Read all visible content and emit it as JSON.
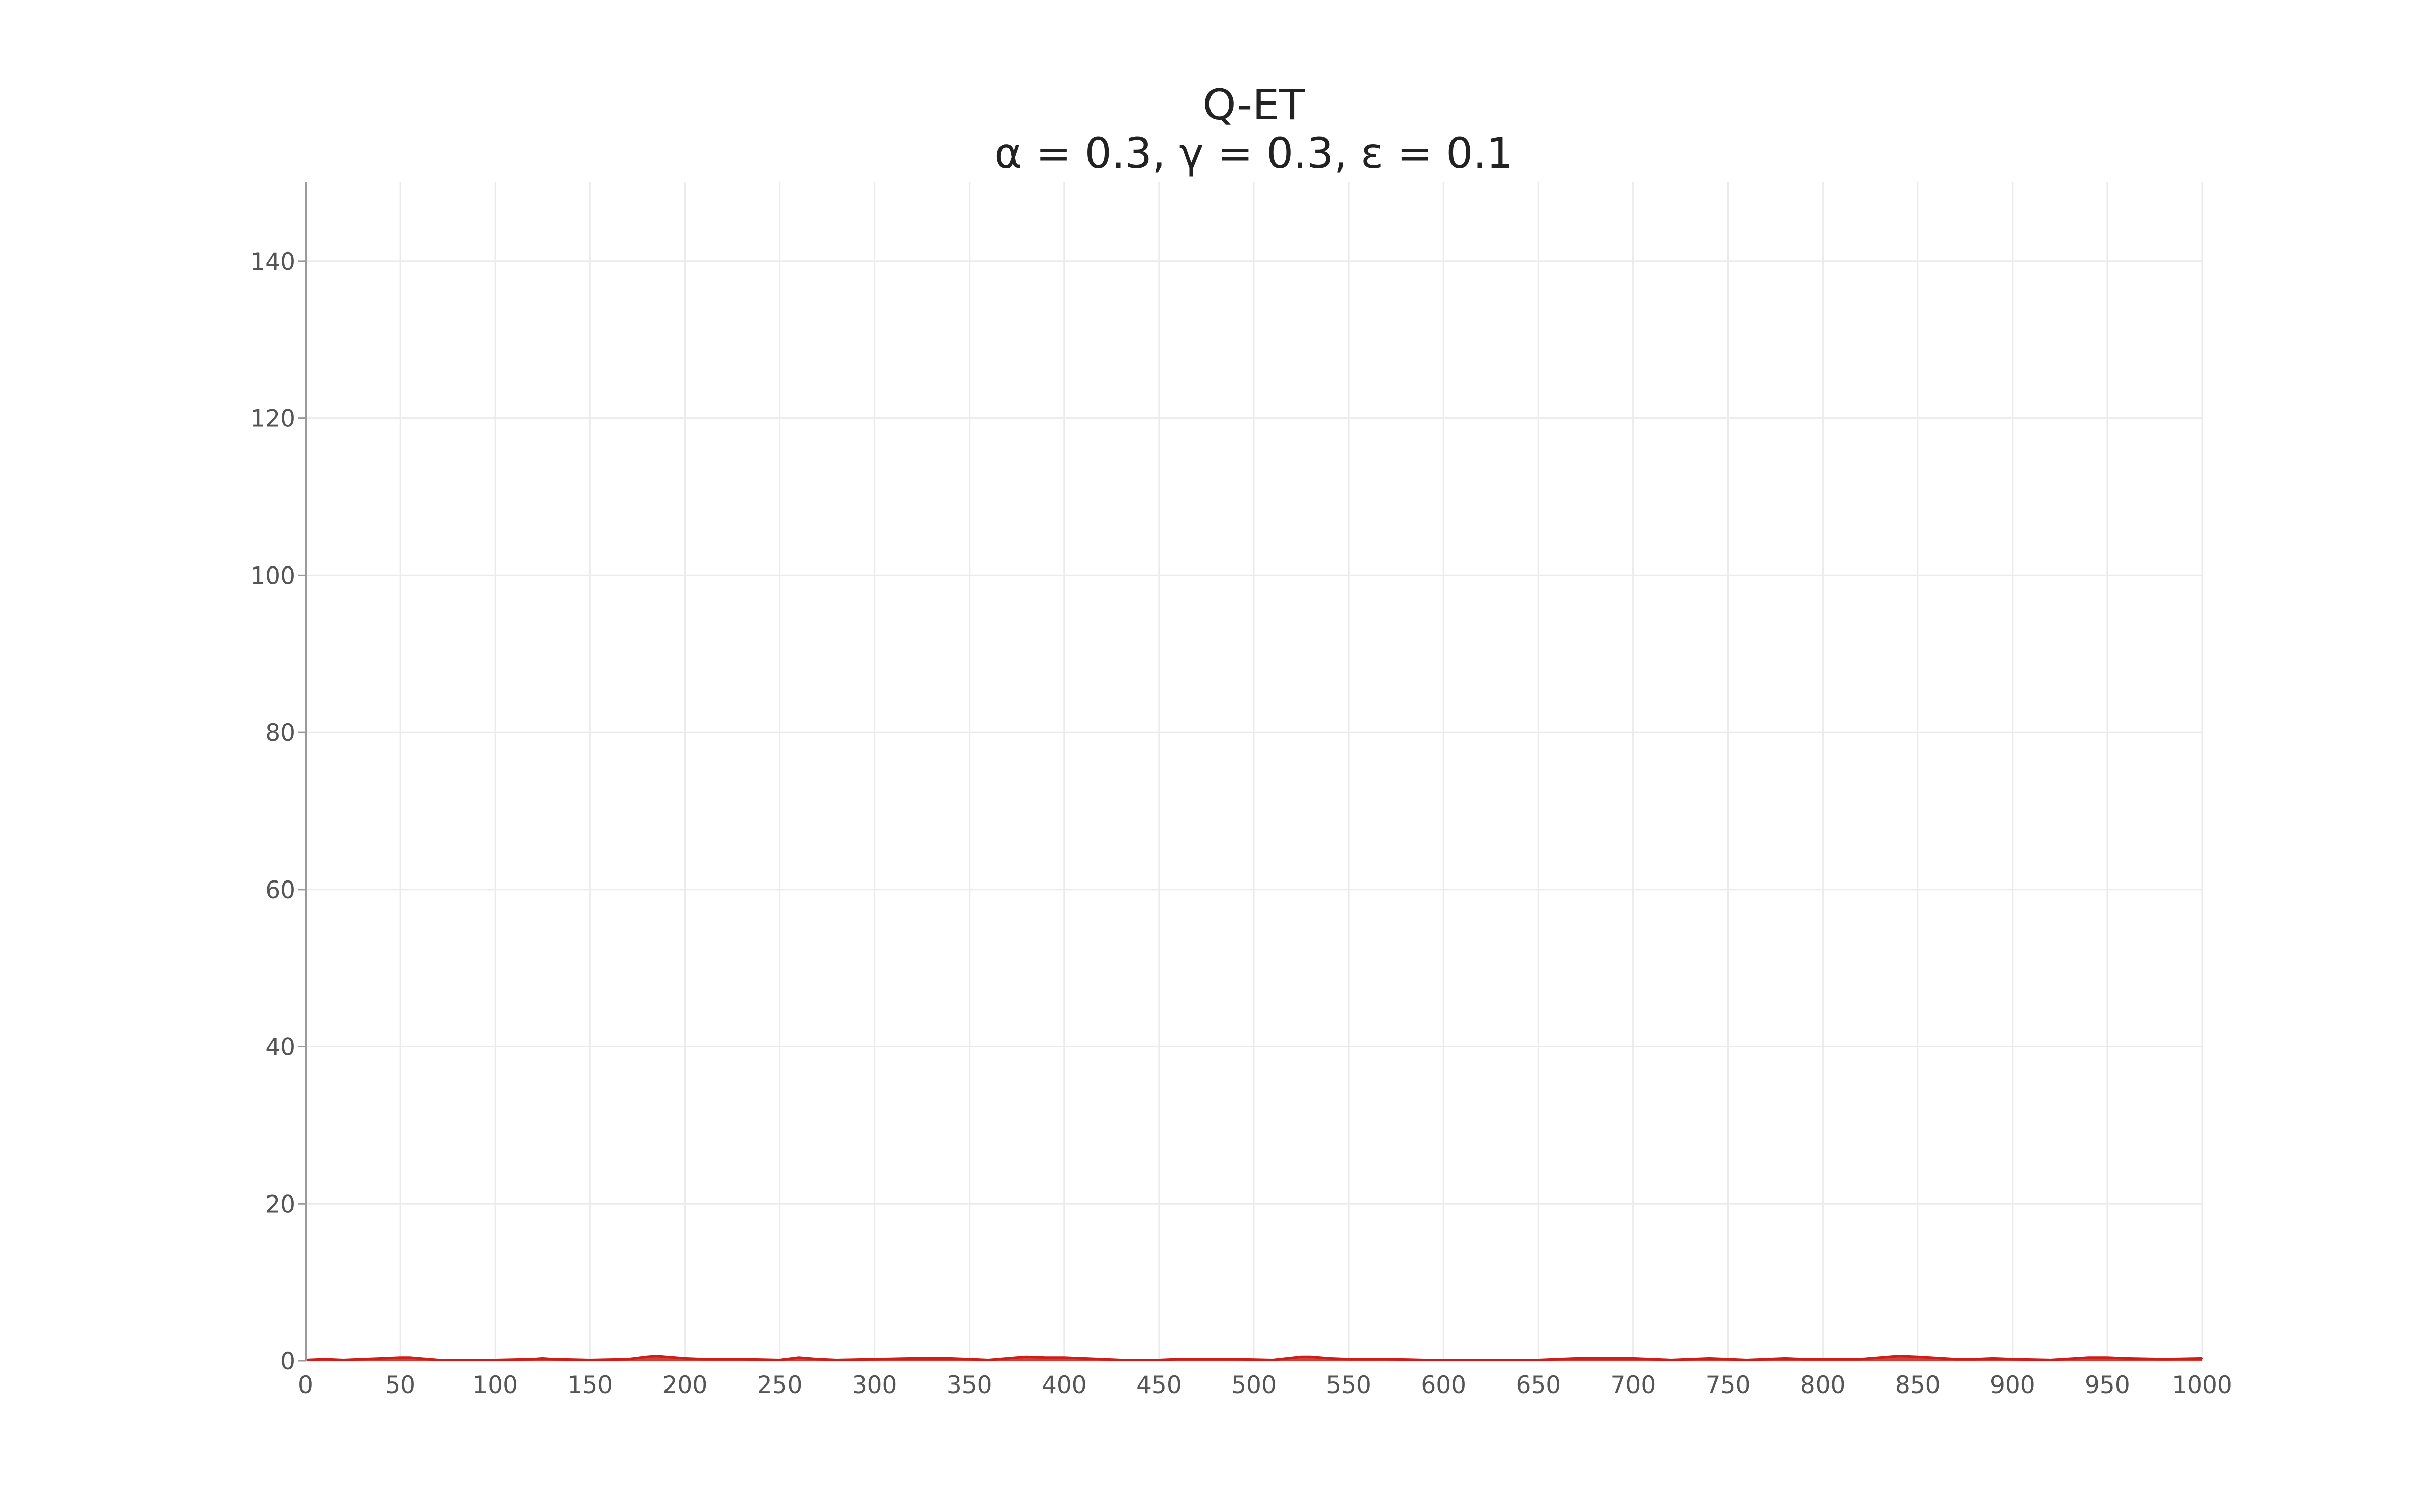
{
  "chart_data": {
    "type": "area",
    "title": "Q-ET",
    "subtitle": "α = 0.3, γ = 0.3, ε = 0.1",
    "xlabel": "",
    "ylabel": "",
    "xlim": [
      0,
      1000
    ],
    "ylim": [
      0,
      150
    ],
    "x_ticks": [
      "0",
      "50",
      "100",
      "150",
      "200",
      "250",
      "300",
      "350",
      "400",
      "450",
      "500",
      "550",
      "600",
      "650",
      "700",
      "750",
      "800",
      "850",
      "900",
      "950",
      "1000"
    ],
    "y_ticks": [
      "0",
      "20",
      "40",
      "60",
      "80",
      "100",
      "120",
      "140"
    ],
    "grid": true,
    "legend": "none",
    "series": [
      {
        "color": "#cc1f1a",
        "x": [
          0,
          10,
          20,
          30,
          40,
          50,
          55,
          60,
          70,
          80,
          100,
          120,
          125,
          130,
          150,
          170,
          180,
          185,
          190,
          200,
          210,
          230,
          250,
          260,
          270,
          280,
          300,
          320,
          330,
          340,
          350,
          360,
          380,
          390,
          400,
          410,
          430,
          450,
          460,
          470,
          490,
          510,
          525,
          530,
          540,
          550,
          570,
          590,
          610,
          630,
          650,
          670,
          680,
          700,
          720,
          740,
          760,
          780,
          790,
          800,
          820,
          830,
          840,
          850,
          870,
          880,
          890,
          900,
          920,
          940,
          950,
          960,
          980,
          1000
        ],
        "values": [
          0.1,
          0.2,
          0.1,
          0.2,
          0.3,
          0.4,
          0.4,
          0.3,
          0.1,
          0.1,
          0.1,
          0.2,
          0.3,
          0.2,
          0.1,
          0.2,
          0.5,
          0.6,
          0.5,
          0.3,
          0.2,
          0.2,
          0.1,
          0.4,
          0.2,
          0.1,
          0.2,
          0.3,
          0.3,
          0.3,
          0.2,
          0.1,
          0.5,
          0.4,
          0.4,
          0.3,
          0.1,
          0.1,
          0.2,
          0.2,
          0.2,
          0.1,
          0.5,
          0.5,
          0.3,
          0.2,
          0.2,
          0.1,
          0.1,
          0.1,
          0.1,
          0.3,
          0.3,
          0.3,
          0.1,
          0.3,
          0.1,
          0.3,
          0.2,
          0.2,
          0.2,
          0.4,
          0.6,
          0.5,
          0.2,
          0.2,
          0.3,
          0.2,
          0.1,
          0.4,
          0.4,
          0.3,
          0.2,
          0.3
        ]
      }
    ]
  }
}
